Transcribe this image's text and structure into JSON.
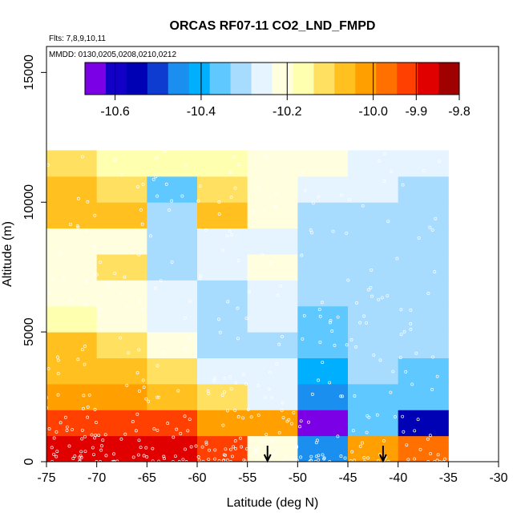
{
  "chart_data": {
    "type": "heatmap",
    "title": "ORCAS RF07-11 CO2_LND_FMPD",
    "subtitle_lines": [
      "Flts: 7,8,9,10,11",
      "MMDD: 0130,0205,0208,0210,0212"
    ],
    "xlabel": "Latitude (deg N)",
    "ylabel": "Altitude (m)",
    "xlim": [
      -75,
      -30
    ],
    "ylim": [
      0,
      16000
    ],
    "x_ticks": [
      -75,
      -70,
      -65,
      -60,
      -55,
      -50,
      -45,
      -40,
      -35,
      -30
    ],
    "y_ticks": [
      0,
      5000,
      10000,
      15000
    ],
    "colorbar": {
      "range": [
        -10.67,
        -9.8
      ],
      "ticks": [
        -10.6,
        -10.4,
        -10.2,
        -10.0,
        -9.9,
        -9.8
      ],
      "tick_labels": [
        "-10.6",
        "-10.4",
        "-10.2",
        "-10.0",
        "-9.9",
        "-9.8"
      ],
      "colors": [
        "#7B00E6",
        "#1200C6",
        "#0000B4",
        "#0E3CD0",
        "#1A8FEF",
        "#00B0FF",
        "#5EC8FF",
        "#A8DCFF",
        "#E6F4FF",
        "#FFFFE0",
        "#FFFFB0",
        "#FFE060",
        "#FFC020",
        "#FFA000",
        "#FF7000",
        "#FF4000",
        "#E00000",
        "#A00000"
      ]
    },
    "x_bin_edges": [
      -75,
      -70,
      -65,
      -60,
      -55,
      -50,
      -45,
      -40,
      -35
    ],
    "y_bin_edges": [
      0,
      1000,
      2000,
      3000,
      4000,
      5000,
      6000,
      7000,
      8000,
      9000,
      10000,
      11000,
      12000
    ],
    "cell_values": [
      [
        -9.89,
        -9.89,
        -9.89,
        -9.91,
        -10.22,
        -10.47,
        -10.03,
        -9.95
      ],
      [
        -9.91,
        -9.91,
        -9.91,
        -10.01,
        -10.02,
        -10.65,
        -10.34,
        -10.57
      ],
      [
        -10.01,
        -10.04,
        -10.09,
        -10.13,
        -10.26,
        -10.45,
        -10.36,
        -10.35
      ],
      [
        -10.05,
        -10.08,
        -10.12,
        -10.24,
        -10.25,
        -10.4,
        -10.33,
        -10.34
      ],
      [
        -10.06,
        -10.12,
        -10.21,
        -10.29,
        -10.31,
        -10.34,
        -10.33,
        -10.3
      ],
      [
        -10.14,
        -10.22,
        -10.26,
        -10.31,
        -10.25,
        -10.34,
        -10.31,
        -10.31
      ],
      [
        -10.2,
        -10.21,
        -10.27,
        -10.31,
        -10.26,
        -10.31,
        -10.31,
        -10.31
      ],
      [
        -10.21,
        -10.13,
        -10.3,
        -10.27,
        -10.21,
        -10.3,
        -10.31,
        -10.3
      ],
      [
        -10.22,
        -10.2,
        -10.31,
        -10.27,
        -10.26,
        -10.3,
        -10.31,
        -10.31
      ],
      [
        -10.09,
        -10.06,
        -10.3,
        -10.08,
        -10.22,
        -10.29,
        -10.29,
        -10.29
      ],
      [
        -10.05,
        -10.11,
        -10.35,
        -10.1,
        -10.21,
        -10.25,
        -10.27,
        -10.29
      ],
      [
        -10.12,
        -10.15,
        -10.17,
        -10.18,
        -10.2,
        -10.23,
        -10.25,
        -10.28
      ]
    ],
    "arrows": [
      {
        "lat": -53,
        "alt": 0
      },
      {
        "lat": -41.5,
        "alt": 0
      }
    ]
  }
}
